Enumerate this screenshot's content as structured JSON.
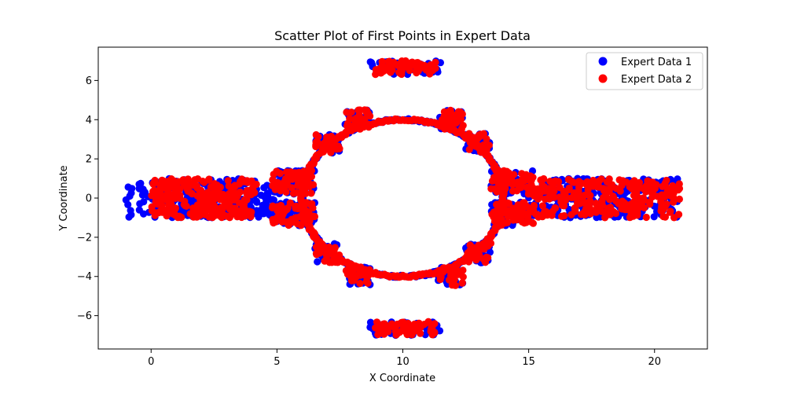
{
  "chart_data": {
    "type": "scatter",
    "title": "Scatter Plot of First Points in Expert Data",
    "xlabel": "X Coordinate",
    "ylabel": "Y Coordinate",
    "xlim": [
      -2.1,
      22.1
    ],
    "ylim": [
      -7.7,
      7.7
    ],
    "xticks": [
      0,
      5,
      10,
      15,
      20
    ],
    "yticks": [
      -6,
      -4,
      -2,
      0,
      2,
      4,
      6
    ],
    "grid": false,
    "legend_position": "top-right",
    "series": [
      {
        "name": "Expert Data 1",
        "color": "#0000ff",
        "regions": {
          "left_band": {
            "x": [
              -1.0,
              4.9
            ],
            "y": [
              -1.0,
              1.0
            ]
          },
          "right_band": {
            "x": [
              15.0,
              21.0
            ],
            "y": [
              -1.0,
              1.0
            ]
          },
          "ring": {
            "center": [
              10,
              0
            ],
            "radius": 4.0
          },
          "upper_cap": {
            "x": [
              8.7,
              11.5
            ],
            "y": [
              6.3,
              7.0
            ]
          },
          "lower_cap": {
            "x": [
              8.7,
              11.5
            ],
            "y": [
              -7.0,
              -6.3
            ]
          }
        }
      },
      {
        "name": "Expert Data 2",
        "color": "#ff0000",
        "regions": {
          "left_band": {
            "x": [
              0.0,
              4.2
            ],
            "y": [
              -1.0,
              1.0
            ]
          },
          "right_band": {
            "x": [
              15.1,
              21.0
            ],
            "y": [
              -1.0,
              1.0
            ]
          },
          "ring": {
            "center": [
              10,
              0
            ],
            "radius": 4.0
          },
          "upper_cap": {
            "x": [
              8.9,
              11.3
            ],
            "y": [
              6.3,
              7.0
            ]
          },
          "lower_cap": {
            "x": [
              8.9,
              11.3
            ],
            "y": [
              -7.0,
              -6.3
            ]
          }
        }
      }
    ]
  }
}
